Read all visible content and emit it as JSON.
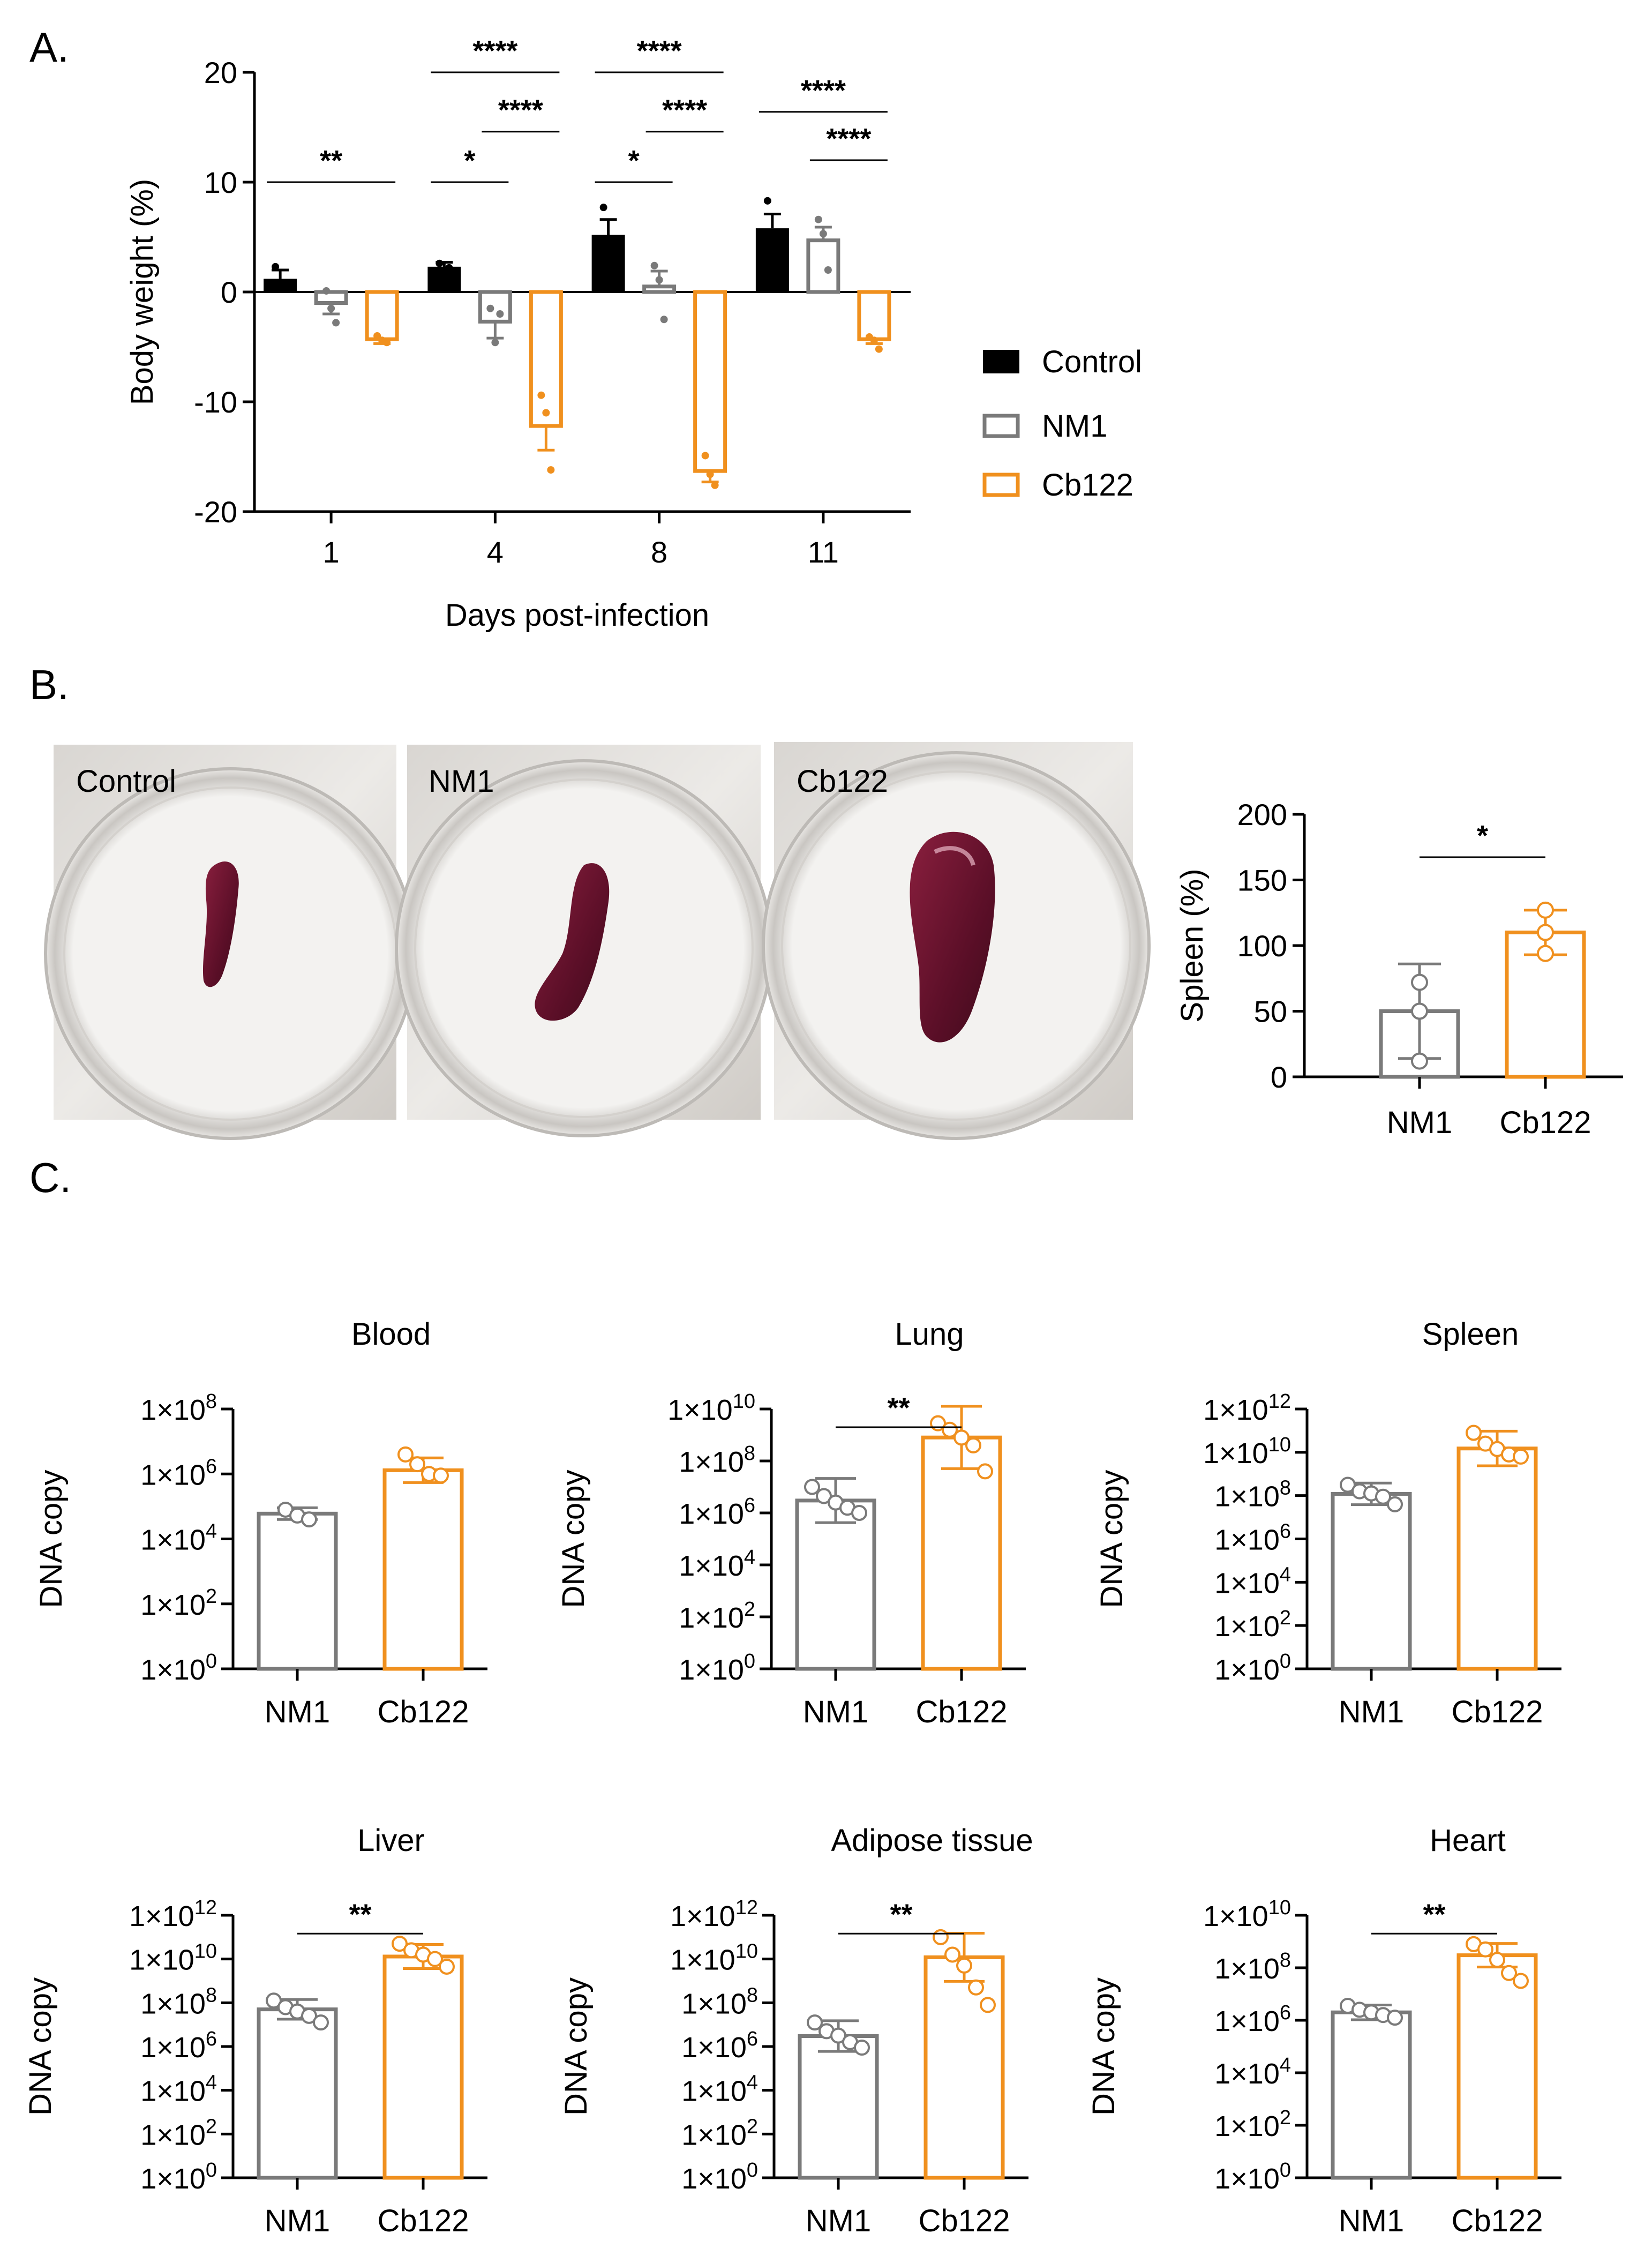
{
  "panel_labels": {
    "a": "A.",
    "b": "B.",
    "c": "C."
  },
  "colors": {
    "control": "#000000",
    "nm1": "#7a7a7a",
    "cb122": "#f0901e"
  },
  "photos": [
    {
      "label": "Control",
      "spleen_size": "small"
    },
    {
      "label": "NM1",
      "spleen_size": "medium"
    },
    {
      "label": "Cb122",
      "spleen_size": "large"
    }
  ],
  "legend": [
    {
      "name": "Control",
      "color": "#000000",
      "fill": "solid"
    },
    {
      "name": "NM1",
      "color": "#7a7a7a",
      "fill": "open"
    },
    {
      "name": "Cb122",
      "color": "#f0901e",
      "fill": "open"
    }
  ],
  "chart_data": [
    {
      "id": "A",
      "type": "bar",
      "xlabel": "Days post-infection",
      "ylabel": "Body weight (%)",
      "ylim": [
        -20,
        20
      ],
      "yticks": [
        20,
        10,
        0,
        -10,
        -20
      ],
      "tick_labels_y": [
        "20",
        "10",
        "0",
        "-10",
        "-20"
      ],
      "categories": [
        "1",
        "4",
        "8",
        "11"
      ],
      "series": [
        {
          "name": "Control",
          "values": [
            1.2,
            2.3,
            5.2,
            5.8
          ],
          "err": [
            0.8,
            0.4,
            1.4,
            1.3
          ],
          "points": [
            [
              2.3,
              0.6,
              0.6
            ],
            [
              2.6,
              2.0,
              2.2
            ],
            [
              7.7,
              4.9,
              3.0
            ],
            [
              8.3,
              5.0,
              4.0
            ]
          ]
        },
        {
          "name": "NM1",
          "values": [
            -1.0,
            -2.7,
            0.5,
            4.7
          ],
          "err": [
            1.0,
            1.5,
            1.4,
            1.2
          ],
          "points": [
            [
              0.1,
              -1.5,
              -2.8
            ],
            [
              -1.5,
              -4.6,
              -2.0
            ],
            [
              2.4,
              1.1,
              -2.5
            ],
            [
              6.6,
              5.3,
              2.0
            ]
          ]
        },
        {
          "name": "Cb122",
          "values": [
            -4.3,
            -12.2,
            -16.3,
            -4.3
          ],
          "err": [
            0.4,
            2.2,
            1.0,
            0.4
          ],
          "points": [
            [
              -4.0,
              -4.4,
              -4.6
            ],
            [
              -9.4,
              -11.0,
              -16.2
            ],
            [
              -14.9,
              -16.6,
              -17.6
            ],
            [
              -4.1,
              -4.4,
              -5.2
            ]
          ]
        }
      ],
      "annotations": [
        {
          "text": "**",
          "group": 0,
          "from": 0,
          "to": 2
        },
        {
          "text": "****",
          "group": 1,
          "from": 0,
          "to": 2
        },
        {
          "text": "****",
          "group": 1,
          "from": 1,
          "to": 2
        },
        {
          "text": "*",
          "group": 1,
          "from": 0,
          "to": 1
        },
        {
          "text": "****",
          "group": 2,
          "from": 0,
          "to": 2
        },
        {
          "text": "****",
          "group": 2,
          "from": 1,
          "to": 2
        },
        {
          "text": "*",
          "group": 2,
          "from": 0,
          "to": 1
        },
        {
          "text": "****",
          "group": 3,
          "from": 0,
          "to": 2
        },
        {
          "text": "****",
          "group": 3,
          "from": 1,
          "to": 2
        }
      ]
    },
    {
      "id": "B",
      "type": "bar",
      "ylabel": "Spleen (%)",
      "ylim": [
        0,
        200
      ],
      "yticks": [
        200,
        150,
        100,
        50,
        0
      ],
      "categories": [
        "NM1",
        "Cb122"
      ],
      "values": [
        50,
        110
      ],
      "err": [
        36,
        17
      ],
      "points": [
        [
          72,
          12,
          50
        ],
        [
          127,
          94,
          110
        ]
      ],
      "annotations": [
        {
          "text": "*",
          "from": 0,
          "to": 1
        }
      ]
    },
    {
      "id": "C1",
      "type": "bar",
      "title": "Blood",
      "ylabel": "DNA copy",
      "log_scale": true,
      "ylim_exp": [
        0,
        8
      ],
      "tick_exps": [
        8,
        6,
        4,
        2,
        0
      ],
      "categories": [
        "NM1",
        "Cb122"
      ],
      "values": [
        60000,
        1300000
      ],
      "err_log": [
        0.18,
        0.38
      ],
      "points_log": [
        [
          4.9,
          4.72,
          4.6
        ],
        [
          6.6,
          6.3,
          6.0,
          5.95
        ]
      ],
      "annotations": []
    },
    {
      "id": "C2",
      "type": "bar",
      "title": "Lung",
      "ylabel": "DNA copy",
      "log_scale": true,
      "ylim_exp": [
        0,
        10
      ],
      "tick_exps": [
        10,
        8,
        6,
        4,
        2,
        0
      ],
      "categories": [
        "NM1",
        "Cb122"
      ],
      "values": [
        3000000,
        800000000
      ],
      "err_log": [
        0.85,
        1.2
      ],
      "points_log": [
        [
          7.0,
          6.65,
          6.4,
          6.2,
          6.0
        ],
        [
          9.45,
          9.2,
          8.9,
          8.6,
          7.6
        ]
      ],
      "annotations": [
        {
          "text": "**",
          "from": 0,
          "to": 1
        }
      ]
    },
    {
      "id": "C3",
      "type": "bar",
      "title": "Spleen",
      "ylabel": "DNA copy",
      "log_scale": true,
      "ylim_exp": [
        0,
        12
      ],
      "tick_exps": [
        12,
        10,
        8,
        6,
        4,
        2,
        0
      ],
      "categories": [
        "NM1",
        "Cb122"
      ],
      "values": [
        120000000,
        15000000000
      ],
      "err_log": [
        0.5,
        0.8
      ],
      "points_log": [
        [
          8.5,
          8.2,
          8.1,
          7.95,
          7.6
        ],
        [
          10.9,
          10.4,
          10.15,
          9.9,
          9.8
        ]
      ],
      "annotations": []
    },
    {
      "id": "C4",
      "type": "bar",
      "title": "Liver",
      "ylabel": "DNA copy",
      "log_scale": true,
      "ylim_exp": [
        0,
        12
      ],
      "tick_exps": [
        12,
        10,
        8,
        6,
        4,
        2,
        0
      ],
      "categories": [
        "NM1",
        "Cb122"
      ],
      "values": [
        50000000,
        13000000000
      ],
      "err_log": [
        0.45,
        0.55
      ],
      "points_log": [
        [
          8.1,
          7.8,
          7.6,
          7.4,
          7.1
        ],
        [
          10.7,
          10.4,
          10.2,
          10.0,
          9.65
        ]
      ],
      "annotations": [
        {
          "text": "**",
          "from": 0,
          "to": 1
        }
      ]
    },
    {
      "id": "C5",
      "type": "bar",
      "title": "Adipose tissue",
      "ylabel": "DNA copy",
      "log_scale": true,
      "ylim_exp": [
        0,
        12
      ],
      "tick_exps": [
        12,
        10,
        8,
        6,
        4,
        2,
        0
      ],
      "categories": [
        "NM1",
        "Cb122"
      ],
      "values": [
        3000000,
        12000000000
      ],
      "err_log": [
        0.7,
        1.1
      ],
      "points_log": [
        [
          7.1,
          6.7,
          6.5,
          6.2,
          5.95
        ],
        [
          11.0,
          10.2,
          9.7,
          8.7,
          7.9
        ]
      ],
      "annotations": [
        {
          "text": "**",
          "from": 0,
          "to": 1
        }
      ]
    },
    {
      "id": "C6",
      "type": "bar",
      "title": "Heart",
      "ylabel": "DNA copy",
      "log_scale": true,
      "ylim_exp": [
        0,
        10
      ],
      "tick_exps": [
        10,
        8,
        6,
        4,
        2,
        0
      ],
      "categories": [
        "NM1",
        "Cb122"
      ],
      "values": [
        2000000,
        300000000
      ],
      "err_log": [
        0.28,
        0.45
      ],
      "points_log": [
        [
          6.55,
          6.4,
          6.3,
          6.2,
          6.1
        ],
        [
          8.9,
          8.7,
          8.3,
          7.8,
          7.5
        ]
      ],
      "annotations": [
        {
          "text": "**",
          "from": 0,
          "to": 1
        }
      ]
    }
  ]
}
